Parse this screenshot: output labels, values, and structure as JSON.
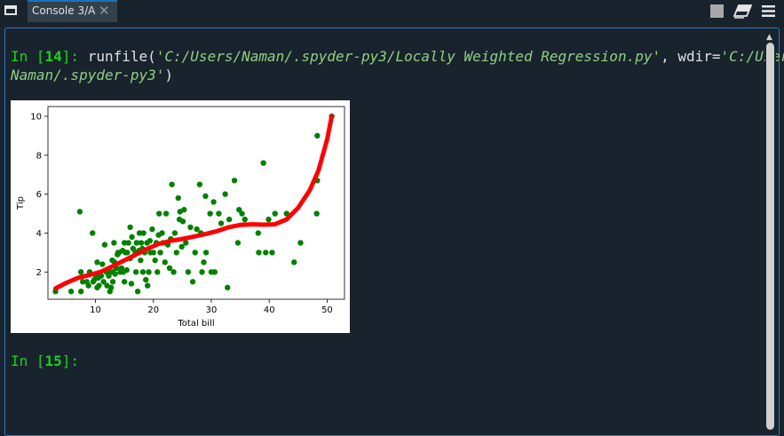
{
  "tab": {
    "title": "Console 3/A",
    "close": "✕"
  },
  "toolbar": {
    "icons": [
      "window-icon",
      "stop-icon",
      "eraser-icon",
      "menu-icon"
    ]
  },
  "console": {
    "cell1": {
      "prompt_in": "In [",
      "number": "14",
      "prompt_close": "]: ",
      "code_a": "runfile(",
      "str_a": "'C:/Users/Naman/.spyder-py3/Locally Weighted Regression.py'",
      "code_b": ", wdir=",
      "str_b1": "'C:/Users/",
      "str_b2": "Naman/.spyder-py3'",
      "code_c": ")"
    },
    "cell2": {
      "prompt_in": "In [",
      "number": "15",
      "prompt_close": "]:"
    }
  },
  "chart_data": {
    "type": "scatter",
    "xlabel": "Total bill",
    "ylabel": "Tip",
    "xlim": [
      1.8,
      53
    ],
    "ylim": [
      0.6,
      10.5
    ],
    "xticks": [
      10,
      20,
      30,
      40,
      50
    ],
    "yticks": [
      2,
      4,
      6,
      8,
      10
    ],
    "scatter_color": "#008000",
    "line_color": "#ff0000",
    "points": [
      [
        3.1,
        1.0
      ],
      [
        5.8,
        1.0
      ],
      [
        7.5,
        1.0
      ],
      [
        7.3,
        5.1
      ],
      [
        7.5,
        2.0
      ],
      [
        7.8,
        1.5
      ],
      [
        8.5,
        1.5
      ],
      [
        8.8,
        1.3
      ],
      [
        9.0,
        2.0
      ],
      [
        9.5,
        4.0
      ],
      [
        9.6,
        1.5
      ],
      [
        9.8,
        1.6
      ],
      [
        10.1,
        1.8
      ],
      [
        10.3,
        1.2
      ],
      [
        10.3,
        2.5
      ],
      [
        10.5,
        1.7
      ],
      [
        10.6,
        1.3
      ],
      [
        11.0,
        1.8
      ],
      [
        11.2,
        2.4
      ],
      [
        11.4,
        1.5
      ],
      [
        11.6,
        3.4
      ],
      [
        11.9,
        2.0
      ],
      [
        12.0,
        1.3
      ],
      [
        12.3,
        1.8
      ],
      [
        12.5,
        2.0
      ],
      [
        12.5,
        1.0
      ],
      [
        12.7,
        1.2
      ],
      [
        12.9,
        2.6
      ],
      [
        13.0,
        2.0
      ],
      [
        13.0,
        1.5
      ],
      [
        13.2,
        3.5
      ],
      [
        13.3,
        2.5
      ],
      [
        13.4,
        1.9
      ],
      [
        13.6,
        2.2
      ],
      [
        13.8,
        2.9
      ],
      [
        13.9,
        3.0
      ],
      [
        14.1,
        3.0
      ],
      [
        14.3,
        2.0
      ],
      [
        14.5,
        2.2
      ],
      [
        14.7,
        3.1
      ],
      [
        14.8,
        2.0
      ],
      [
        15.0,
        1.5
      ],
      [
        15.0,
        3.5
      ],
      [
        15.2,
        3.0
      ],
      [
        15.4,
        2.1
      ],
      [
        15.5,
        3.0
      ],
      [
        15.7,
        3.5
      ],
      [
        16.0,
        2.7
      ],
      [
        16.0,
        4.3
      ],
      [
        16.2,
        1.4
      ],
      [
        16.3,
        3.8
      ],
      [
        16.5,
        3.2
      ],
      [
        16.9,
        3.0
      ],
      [
        17.0,
        2.0
      ],
      [
        17.1,
        3.5
      ],
      [
        17.3,
        1.0
      ],
      [
        17.5,
        3.1
      ],
      [
        17.6,
        4.0
      ],
      [
        17.8,
        2.6
      ],
      [
        17.9,
        3.5
      ],
      [
        18.1,
        3.2
      ],
      [
        18.2,
        2.0
      ],
      [
        18.3,
        4.0
      ],
      [
        18.5,
        3.0
      ],
      [
        18.7,
        1.6
      ],
      [
        18.9,
        3.5
      ],
      [
        19.0,
        1.3
      ],
      [
        19.2,
        2.0
      ],
      [
        19.4,
        3.6
      ],
      [
        19.5,
        3.0
      ],
      [
        19.8,
        4.2
      ],
      [
        20.0,
        3.0
      ],
      [
        20.3,
        2.6
      ],
      [
        20.5,
        3.5
      ],
      [
        20.7,
        2.0
      ],
      [
        20.9,
        3.9
      ],
      [
        21.0,
        5.0
      ],
      [
        21.2,
        3.0
      ],
      [
        21.5,
        4.0
      ],
      [
        21.7,
        3.5
      ],
      [
        22.0,
        2.5
      ],
      [
        22.2,
        5.0
      ],
      [
        22.5,
        3.4
      ],
      [
        22.8,
        2.2
      ],
      [
        23.0,
        3.7
      ],
      [
        23.2,
        6.5
      ],
      [
        23.5,
        2.0
      ],
      [
        23.7,
        4.0
      ],
      [
        24.0,
        3.0
      ],
      [
        24.3,
        5.8
      ],
      [
        24.5,
        4.7
      ],
      [
        24.6,
        5.1
      ],
      [
        24.9,
        3.3
      ],
      [
        25.1,
        4.6
      ],
      [
        25.3,
        5.2
      ],
      [
        25.6,
        3.5
      ],
      [
        26.0,
        2.0
      ],
      [
        26.4,
        4.3
      ],
      [
        26.8,
        1.5
      ],
      [
        27.2,
        3.0
      ],
      [
        27.5,
        4.2
      ],
      [
        28.0,
        6.5
      ],
      [
        28.2,
        4.0
      ],
      [
        28.4,
        2.0
      ],
      [
        28.7,
        2.5
      ],
      [
        29.0,
        5.9
      ],
      [
        29.1,
        3.0
      ],
      [
        29.8,
        5.0
      ],
      [
        30.0,
        2.0
      ],
      [
        30.4,
        5.6
      ],
      [
        30.6,
        2.0
      ],
      [
        31.3,
        5.0
      ],
      [
        31.7,
        4.5
      ],
      [
        32.4,
        6.0
      ],
      [
        32.8,
        1.2
      ],
      [
        33.1,
        4.7
      ],
      [
        34.0,
        6.7
      ],
      [
        34.6,
        3.5
      ],
      [
        34.8,
        5.2
      ],
      [
        35.3,
        5.0
      ],
      [
        35.8,
        4.7
      ],
      [
        38.1,
        4.0
      ],
      [
        38.2,
        3.0
      ],
      [
        39.0,
        7.6
      ],
      [
        39.4,
        3.0
      ],
      [
        39.9,
        4.7
      ],
      [
        40.5,
        3.0
      ],
      [
        41.0,
        5.0
      ],
      [
        43.0,
        5.0
      ],
      [
        44.3,
        2.5
      ],
      [
        45.4,
        3.5
      ],
      [
        48.2,
        5.0
      ],
      [
        48.3,
        6.7
      ],
      [
        48.3,
        9.0
      ],
      [
        50.8,
        10.0
      ]
    ],
    "line": [
      [
        3.1,
        1.15
      ],
      [
        5.0,
        1.45
      ],
      [
        7.0,
        1.7
      ],
      [
        9.0,
        1.85
      ],
      [
        11.0,
        2.02
      ],
      [
        13.0,
        2.3
      ],
      [
        15.0,
        2.6
      ],
      [
        17.0,
        2.9
      ],
      [
        19.0,
        3.2
      ],
      [
        21.0,
        3.45
      ],
      [
        23.0,
        3.6
      ],
      [
        25.0,
        3.7
      ],
      [
        27.0,
        3.82
      ],
      [
        29.0,
        3.95
      ],
      [
        31.0,
        4.1
      ],
      [
        33.0,
        4.3
      ],
      [
        35.0,
        4.42
      ],
      [
        37.0,
        4.45
      ],
      [
        39.0,
        4.43
      ],
      [
        41.0,
        4.45
      ],
      [
        43.0,
        4.7
      ],
      [
        45.0,
        5.3
      ],
      [
        47.0,
        6.2
      ],
      [
        48.5,
        7.2
      ],
      [
        50.0,
        8.8
      ],
      [
        50.8,
        10.0
      ]
    ]
  }
}
